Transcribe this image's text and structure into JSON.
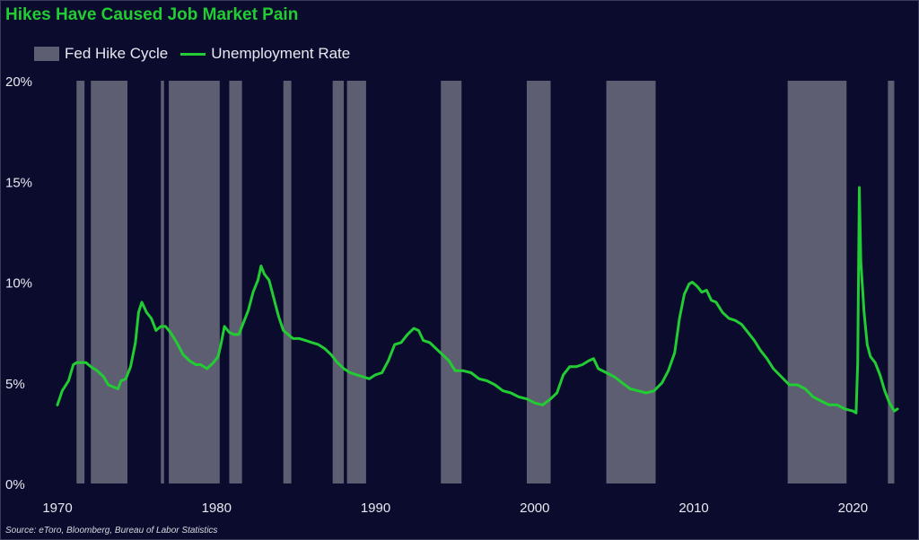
{
  "title": "Hikes Have Caused Job Market Pain",
  "source": "Source: eToro, Bloomberg, Bureau of Labor Statistics",
  "legend": {
    "hike": "Fed Hike Cycle",
    "unemp": "Unemployment Rate"
  },
  "colors": {
    "background": "#0b0b2e",
    "line": "#22cc33",
    "hike_band": "#5e5e72",
    "text": "#e8e8f0"
  },
  "chart_data": {
    "type": "line",
    "xlim": [
      1970,
      2022.8
    ],
    "ylim": [
      0,
      20
    ],
    "x_ticks": [
      1970,
      1980,
      1990,
      2000,
      2010,
      2020
    ],
    "x_tick_labels": [
      "1970",
      "1980",
      "1990",
      "2000",
      "2010",
      "2020"
    ],
    "y_ticks": [
      0,
      5,
      10,
      15,
      20
    ],
    "y_tick_labels": [
      "0%",
      "5%",
      "10%",
      "15%",
      "20%"
    ],
    "grid": false,
    "legend_position": "top-left",
    "hike_cycles": [
      [
        1971.2,
        1971.7
      ],
      [
        1972.1,
        1974.4
      ],
      [
        1976.5,
        1976.7
      ],
      [
        1977.0,
        1980.2
      ],
      [
        1980.8,
        1981.6
      ],
      [
        1984.2,
        1984.7
      ],
      [
        1987.3,
        1988.0
      ],
      [
        1988.2,
        1989.4
      ],
      [
        1994.1,
        1995.4
      ],
      [
        1999.5,
        2001.0
      ],
      [
        2004.5,
        2007.6
      ],
      [
        2015.9,
        2019.6
      ],
      [
        2022.2,
        2022.6
      ]
    ],
    "series": [
      {
        "name": "Unemployment Rate",
        "x": [
          1970.0,
          1970.3,
          1970.7,
          1971.0,
          1971.2,
          1971.5,
          1971.8,
          1972.1,
          1972.5,
          1972.9,
          1973.2,
          1973.5,
          1973.8,
          1974.0,
          1974.3,
          1974.6,
          1974.9,
          1975.1,
          1975.3,
          1975.6,
          1975.9,
          1976.2,
          1976.5,
          1976.8,
          1977.1,
          1977.5,
          1977.9,
          1978.3,
          1978.7,
          1979.0,
          1979.4,
          1979.8,
          1980.1,
          1980.3,
          1980.5,
          1980.8,
          1981.1,
          1981.4,
          1981.7,
          1982.0,
          1982.3,
          1982.6,
          1982.8,
          1983.0,
          1983.3,
          1983.6,
          1983.9,
          1984.2,
          1984.5,
          1984.8,
          1985.2,
          1985.6,
          1986.0,
          1986.4,
          1986.8,
          1987.2,
          1987.6,
          1988.0,
          1988.4,
          1988.8,
          1989.2,
          1989.6,
          1990.0,
          1990.4,
          1990.8,
          1991.2,
          1991.6,
          1992.0,
          1992.4,
          1992.7,
          1993.0,
          1993.4,
          1993.8,
          1994.2,
          1994.6,
          1995.0,
          1995.5,
          1996.0,
          1996.5,
          1997.0,
          1997.5,
          1998.0,
          1998.5,
          1999.0,
          1999.5,
          2000.0,
          2000.5,
          2001.0,
          2001.4,
          2001.8,
          2002.2,
          2002.6,
          2003.0,
          2003.4,
          2003.7,
          2004.0,
          2004.5,
          2005.0,
          2005.5,
          2006.0,
          2006.5,
          2007.0,
          2007.5,
          2008.0,
          2008.4,
          2008.8,
          2009.1,
          2009.4,
          2009.7,
          2009.9,
          2010.2,
          2010.5,
          2010.8,
          2011.1,
          2011.4,
          2011.8,
          2012.2,
          2012.6,
          2013.0,
          2013.4,
          2013.8,
          2014.2,
          2014.6,
          2015.0,
          2015.5,
          2016.0,
          2016.5,
          2017.0,
          2017.5,
          2018.0,
          2018.5,
          2019.0,
          2019.5,
          2020.0,
          2020.2,
          2020.3,
          2020.4,
          2020.5,
          2020.7,
          2020.9,
          2021.1,
          2021.4,
          2021.7,
          2022.0,
          2022.3,
          2022.6,
          2022.8
        ],
        "y": [
          3.9,
          4.6,
          5.1,
          5.9,
          6.0,
          6.0,
          6.0,
          5.8,
          5.6,
          5.3,
          4.9,
          4.8,
          4.7,
          5.1,
          5.2,
          5.8,
          7.0,
          8.5,
          9.0,
          8.5,
          8.2,
          7.6,
          7.8,
          7.8,
          7.5,
          7.0,
          6.4,
          6.1,
          5.9,
          5.9,
          5.7,
          6.0,
          6.3,
          7.0,
          7.8,
          7.5,
          7.4,
          7.4,
          8.0,
          8.6,
          9.5,
          10.1,
          10.8,
          10.4,
          10.1,
          9.2,
          8.3,
          7.6,
          7.4,
          7.2,
          7.2,
          7.1,
          7.0,
          6.9,
          6.7,
          6.4,
          6.0,
          5.7,
          5.5,
          5.4,
          5.3,
          5.2,
          5.4,
          5.5,
          6.1,
          6.9,
          7.0,
          7.4,
          7.7,
          7.6,
          7.1,
          7.0,
          6.7,
          6.4,
          6.1,
          5.6,
          5.6,
          5.5,
          5.2,
          5.1,
          4.9,
          4.6,
          4.5,
          4.3,
          4.2,
          4.0,
          3.9,
          4.2,
          4.5,
          5.4,
          5.8,
          5.8,
          5.9,
          6.1,
          6.2,
          5.7,
          5.5,
          5.3,
          5.0,
          4.7,
          4.6,
          4.5,
          4.6,
          5.0,
          5.6,
          6.5,
          8.2,
          9.4,
          9.9,
          10.0,
          9.8,
          9.5,
          9.6,
          9.1,
          9.0,
          8.5,
          8.2,
          8.1,
          7.9,
          7.5,
          7.1,
          6.6,
          6.2,
          5.7,
          5.3,
          4.9,
          4.9,
          4.7,
          4.3,
          4.1,
          3.9,
          3.9,
          3.7,
          3.6,
          3.5,
          6.0,
          14.7,
          11.0,
          8.5,
          6.9,
          6.3,
          6.0,
          5.4,
          4.6,
          4.0,
          3.6,
          3.7
        ]
      }
    ]
  }
}
